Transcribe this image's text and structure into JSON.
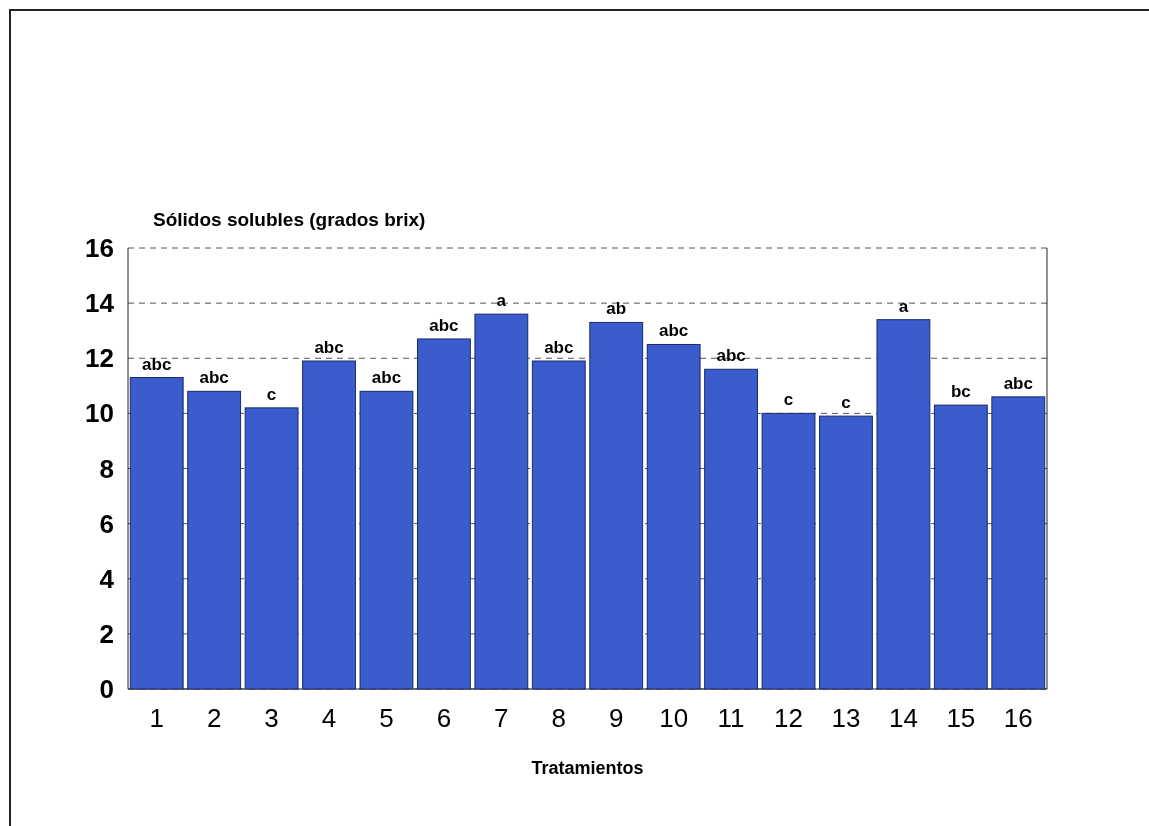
{
  "chart_data": {
    "type": "bar",
    "ylabel": "Sólidos solubles (grados brix)",
    "xlabel": "Tratamientos",
    "categories": [
      "1",
      "2",
      "3",
      "4",
      "5",
      "6",
      "7",
      "8",
      "9",
      "10",
      "11",
      "12",
      "13",
      "14",
      "15",
      "16"
    ],
    "values": [
      11.3,
      10.8,
      10.2,
      11.9,
      10.8,
      12.7,
      13.6,
      11.9,
      13.3,
      12.5,
      11.6,
      10.0,
      9.9,
      13.4,
      10.3,
      10.6
    ],
    "value_labels": [
      "abc",
      "abc",
      "c",
      "abc",
      "abc",
      "abc",
      "a",
      "abc",
      "ab",
      "abc",
      "abc",
      "c",
      "c",
      "a",
      "bc",
      "abc"
    ],
    "color": "#3a5ccc",
    "ylim": [
      0,
      16
    ],
    "yticks": [
      0,
      2,
      4,
      6,
      8,
      10,
      12,
      14,
      16
    ],
    "grid": "y"
  }
}
